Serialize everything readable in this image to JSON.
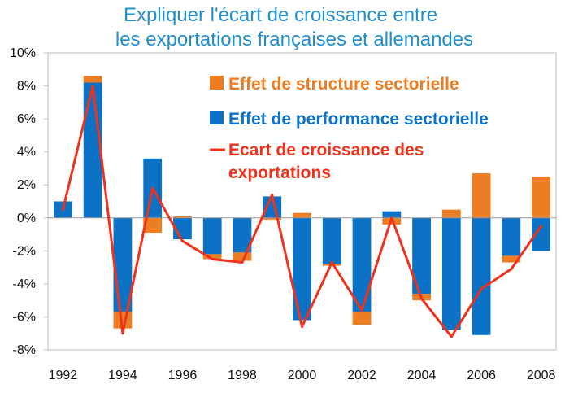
{
  "chart_data": {
    "type": "bar",
    "title": [
      "Expliquer l'écart de croissance entre",
      "les exportations françaises et allemandes"
    ],
    "xlabel": "",
    "ylabel": "",
    "years": [
      1992,
      1993,
      1994,
      1995,
      1996,
      1997,
      1998,
      1999,
      2000,
      2001,
      2002,
      2003,
      2004,
      2005,
      2006,
      2007,
      2008
    ],
    "x_tick_labels": [
      "1992",
      "1994",
      "1996",
      "1998",
      "2000",
      "2002",
      "2004",
      "2006",
      "2008"
    ],
    "y_tick_labels": [
      "10%",
      "8%",
      "6%",
      "4%",
      "2%",
      "0%",
      "-2%",
      "-4%",
      "-6%",
      "-8%"
    ],
    "ylim": [
      -8,
      10
    ],
    "stacked": true,
    "series": [
      {
        "name": "Effet de structure sectorielle",
        "kind": "bar",
        "color": "#ed7d22",
        "values": [
          0.0,
          0.4,
          -1.0,
          -0.9,
          0.1,
          -0.3,
          -0.5,
          -0.1,
          0.3,
          -0.1,
          -0.8,
          -0.4,
          -0.4,
          0.5,
          2.7,
          -0.4,
          2.5
        ]
      },
      {
        "name": "Effet de performance sectorielle",
        "kind": "bar",
        "color": "#0b72c6",
        "values": [
          1.0,
          8.2,
          -5.7,
          3.6,
          -1.3,
          -2.2,
          -2.1,
          1.3,
          -6.2,
          -2.8,
          -5.7,
          0.4,
          -4.6,
          -6.8,
          -7.1,
          -2.3,
          -2.0
        ]
      },
      {
        "name": "Ecart de croissance des exportations",
        "kind": "line",
        "color": "#f0321c",
        "values": [
          0.5,
          8.0,
          -7.0,
          1.8,
          -1.4,
          -2.5,
          -2.7,
          1.4,
          -6.6,
          -2.7,
          -5.6,
          0.0,
          -4.9,
          -7.2,
          -4.3,
          -3.1,
          -0.5
        ]
      }
    ],
    "legend": {
      "placement": "top-right",
      "line_label_lines": [
        "Ecart de croissance des",
        "exportations"
      ]
    },
    "grid": false
  }
}
